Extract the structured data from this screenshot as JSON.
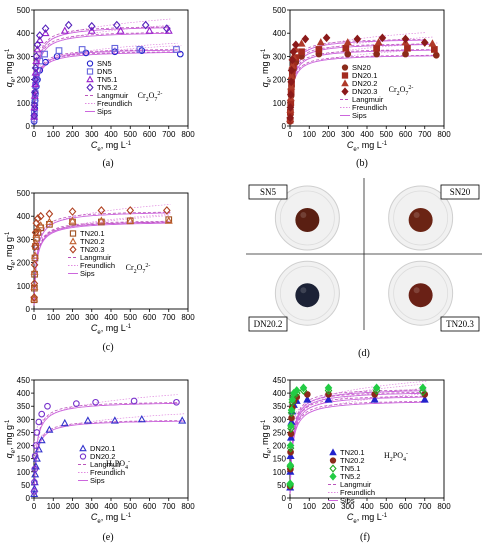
{
  "chart_data": [
    {
      "type": "scatter",
      "panel": "a",
      "caption": "(a)",
      "ion_label": "Cr2O7 2-",
      "xlabel": "Ce, mg L-1",
      "ylabel": "qe, mg g-1",
      "xlim": [
        0,
        800
      ],
      "ylim": [
        0,
        500
      ],
      "xticks": [
        0,
        100,
        200,
        300,
        400,
        500,
        600,
        700,
        800
      ],
      "yticks": [
        0,
        100,
        200,
        300,
        400,
        500
      ],
      "legend_position": "center-right",
      "series": [
        {
          "name": "SN5",
          "marker": "circle",
          "color": "#2222cc",
          "x": [
            1,
            2,
            4,
            6,
            8,
            12,
            18,
            30,
            60,
            120,
            270,
            420,
            560,
            760
          ],
          "y": [
            20,
            45,
            75,
            110,
            140,
            170,
            200,
            240,
            275,
            300,
            315,
            320,
            325,
            310
          ]
        },
        {
          "name": "DN5",
          "marker": "square",
          "color": "#6666dd",
          "x": [
            1,
            2,
            4,
            6,
            8,
            12,
            18,
            30,
            55,
            130,
            250,
            420,
            550,
            740
          ],
          "y": [
            30,
            60,
            100,
            140,
            175,
            210,
            240,
            280,
            310,
            325,
            330,
            335,
            330,
            330
          ]
        },
        {
          "name": "TN5.1",
          "marker": "triangle",
          "color": "#9922cc",
          "x": [
            1,
            2,
            4,
            6,
            8,
            12,
            18,
            30,
            60,
            160,
            300,
            450,
            600,
            700
          ],
          "y": [
            40,
            80,
            130,
            180,
            230,
            280,
            330,
            370,
            400,
            410,
            410,
            410,
            410,
            410
          ]
        },
        {
          "name": "TN5.2",
          "marker": "diamond",
          "color": "#5522bb",
          "x": [
            1,
            2,
            4,
            6,
            8,
            12,
            18,
            30,
            60,
            180,
            300,
            430,
            580,
            690
          ],
          "y": [
            45,
            90,
            145,
            200,
            250,
            300,
            350,
            390,
            420,
            435,
            430,
            435,
            435,
            420
          ]
        }
      ],
      "model_legend": [
        "Langmuir",
        "Freundlich",
        "Sips"
      ]
    },
    {
      "type": "scatter",
      "panel": "b",
      "caption": "(b)",
      "ion_label": "Cr2O7 2-",
      "xlabel": "Ce, mg L-1",
      "ylabel": "qe, mg g-1",
      "xlim": [
        0,
        800
      ],
      "ylim": [
        0,
        500
      ],
      "xticks": [
        0,
        100,
        200,
        300,
        400,
        500,
        600,
        700,
        800
      ],
      "yticks": [
        0,
        100,
        200,
        300,
        400,
        500
      ],
      "legend_position": "center-right",
      "series": [
        {
          "name": "SN20",
          "marker": "circle",
          "color": "#8b2a1a",
          "x": [
            1,
            2,
            4,
            6,
            8,
            12,
            18,
            30,
            60,
            150,
            300,
            450,
            600,
            760
          ],
          "y": [
            20,
            50,
            90,
            130,
            170,
            210,
            245,
            275,
            300,
            310,
            310,
            310,
            310,
            305
          ]
        },
        {
          "name": "DN20.1",
          "marker": "square",
          "color": "#a32a1e",
          "x": [
            1,
            2,
            4,
            6,
            8,
            12,
            18,
            30,
            60,
            150,
            290,
            450,
            610,
            750
          ],
          "y": [
            25,
            60,
            100,
            145,
            185,
            225,
            260,
            295,
            320,
            330,
            335,
            335,
            335,
            330
          ]
        },
        {
          "name": "DN20.2",
          "marker": "triangle",
          "color": "#b03a2a",
          "x": [
            1,
            2,
            4,
            6,
            8,
            12,
            18,
            30,
            60,
            160,
            300,
            460,
            600,
            740
          ],
          "y": [
            30,
            70,
            120,
            170,
            215,
            260,
            300,
            330,
            355,
            360,
            360,
            360,
            360,
            355
          ]
        },
        {
          "name": "DN20.3",
          "marker": "diamond",
          "color": "#8b1a1a",
          "x": [
            1,
            2,
            4,
            6,
            8,
            12,
            18,
            30,
            80,
            190,
            350,
            480,
            600,
            700
          ],
          "y": [
            35,
            80,
            135,
            190,
            240,
            285,
            320,
            350,
            375,
            380,
            375,
            380,
            375,
            360
          ]
        }
      ],
      "model_legend": [
        "Langmuir",
        "Freundlich",
        "Sips"
      ]
    },
    {
      "type": "scatter",
      "panel": "c",
      "caption": "(c)",
      "ion_label": "Cr2O7 2-",
      "xlabel": "Ce, mg L-1",
      "ylabel": "qe, mg g-1",
      "xlim": [
        0,
        800
      ],
      "ylim": [
        0,
        500
      ],
      "xticks": [
        0,
        100,
        200,
        300,
        400,
        500,
        600,
        700,
        800
      ],
      "yticks": [
        0,
        100,
        200,
        300,
        400,
        500
      ],
      "legend_position": "top-center",
      "series": [
        {
          "name": "TN20.1",
          "marker": "square",
          "color": "#a05020",
          "x": [
            1,
            2,
            3,
            5,
            8,
            12,
            20,
            35,
            80,
            200,
            350,
            500,
            700
          ],
          "y": [
            40,
            90,
            150,
            220,
            270,
            305,
            330,
            350,
            365,
            375,
            375,
            380,
            385
          ]
        },
        {
          "name": "TN20.2",
          "marker": "triangle",
          "color": "#c06030",
          "x": [
            1,
            2,
            3,
            5,
            8,
            12,
            20,
            35,
            80,
            200,
            350,
            500,
            700
          ],
          "y": [
            45,
            95,
            160,
            230,
            285,
            320,
            345,
            360,
            375,
            380,
            380,
            380,
            380
          ]
        },
        {
          "name": "TN20.3",
          "marker": "diamond",
          "color": "#b04020",
          "x": [
            1,
            2,
            3,
            5,
            8,
            12,
            20,
            35,
            80,
            200,
            350,
            500,
            690
          ],
          "y": [
            50,
            110,
            190,
            270,
            330,
            370,
            390,
            400,
            410,
            420,
            425,
            425,
            425
          ]
        }
      ],
      "model_legend": [
        "Langmuir",
        "Freundlich",
        "Sips"
      ]
    },
    {
      "type": "scatter",
      "panel": "e",
      "caption": "(e)",
      "ion_label": "H2PO4 -",
      "xlabel": "Ce, mg L-1",
      "ylabel": "qe, mg g-1",
      "xlim": [
        0,
        800
      ],
      "ylim": [
        0,
        450
      ],
      "xticks": [
        0,
        100,
        200,
        300,
        400,
        500,
        600,
        700,
        800
      ],
      "yticks": [
        0,
        50,
        100,
        150,
        200,
        250,
        300,
        350,
        400,
        450
      ],
      "legend_position": "center-right",
      "series": [
        {
          "name": "DN20.1",
          "marker": "triangle",
          "color": "#3333cc",
          "x": [
            1,
            2,
            4,
            6,
            10,
            15,
            25,
            40,
            80,
            160,
            280,
            420,
            560,
            770
          ],
          "y": [
            15,
            35,
            60,
            90,
            120,
            150,
            185,
            220,
            260,
            285,
            295,
            295,
            300,
            295
          ]
        },
        {
          "name": "DN20.2",
          "marker": "circle",
          "color": "#7733cc",
          "x": [
            1,
            2,
            4,
            6,
            10,
            15,
            25,
            40,
            70,
            220,
            320,
            520,
            740
          ],
          "y": [
            25,
            60,
            110,
            160,
            200,
            250,
            290,
            320,
            350,
            360,
            365,
            370,
            365
          ]
        }
      ],
      "model_legend": [
        "Langmuir",
        "Freundlich",
        "Sips"
      ]
    },
    {
      "type": "scatter",
      "panel": "f",
      "caption": "(f)",
      "ion_label": "H2PO4 -",
      "xlabel": "Ce, mg L-1",
      "ylabel": "qe, mg g-1",
      "xlim": [
        0,
        800
      ],
      "ylim": [
        0,
        450
      ],
      "xticks": [
        0,
        100,
        200,
        300,
        400,
        500,
        600,
        700,
        800
      ],
      "yticks": [
        0,
        50,
        100,
        150,
        200,
        250,
        300,
        350,
        400,
        450
      ],
      "legend_position": "center",
      "series": [
        {
          "name": "TN20.1",
          "marker": "triangle",
          "color": "#2222cc",
          "x": [
            1,
            2,
            3,
            5,
            8,
            12,
            20,
            35,
            90,
            200,
            440,
            700
          ],
          "y": [
            40,
            100,
            160,
            230,
            290,
            330,
            355,
            370,
            375,
            375,
            375,
            375
          ]
        },
        {
          "name": "TN20.2",
          "marker": "circle",
          "color": "#8b2a1a",
          "x": [
            1,
            2,
            3,
            5,
            8,
            12,
            20,
            35,
            90,
            200,
            440,
            700
          ],
          "y": [
            45,
            110,
            175,
            245,
            305,
            345,
            370,
            385,
            395,
            395,
            395,
            395
          ]
        },
        {
          "name": "TN5.1",
          "marker": "diamond-open",
          "color": "#22aa22",
          "x": [
            1,
            2,
            3,
            5,
            8,
            12,
            20,
            35,
            70,
            200,
            450,
            690
          ],
          "y": [
            50,
            120,
            190,
            265,
            325,
            365,
            390,
            400,
            410,
            410,
            410,
            405
          ]
        },
        {
          "name": "TN5.2",
          "marker": "diamond",
          "color": "#22cc44",
          "x": [
            1,
            2,
            3,
            5,
            8,
            12,
            20,
            35,
            70,
            200,
            450,
            690
          ],
          "y": [
            55,
            125,
            200,
            275,
            335,
            375,
            400,
            410,
            420,
            420,
            420,
            420
          ]
        }
      ],
      "model_legend": [
        "Langmuir",
        "Freundlich",
        "Sips"
      ]
    }
  ],
  "photos": {
    "caption": "(d)",
    "items": [
      {
        "label": "SN5",
        "bead_color": "#5a1f12"
      },
      {
        "label": "SN20",
        "bead_color": "#6b2414"
      },
      {
        "label": "DN20.2",
        "bead_color": "#1c2236"
      },
      {
        "label": "TN20.3",
        "bead_color": "#6a2116"
      }
    ]
  }
}
